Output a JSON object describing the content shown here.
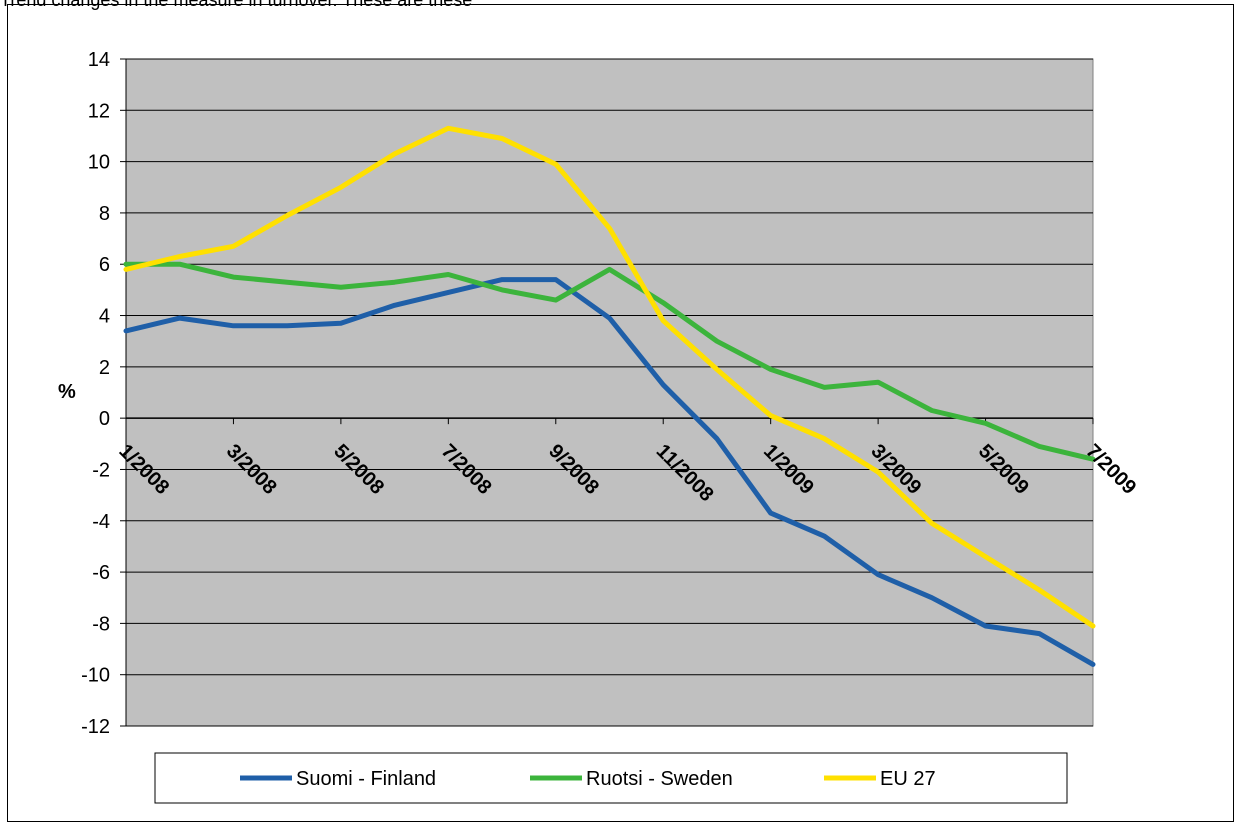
{
  "header": {
    "cut_text": "Trend changes in the measure in turnover. These are these"
  },
  "chart_data": {
    "type": "line",
    "title": "",
    "xlabel": "",
    "ylabel": "%",
    "ylim": [
      -12,
      14
    ],
    "yticks": [
      14,
      12,
      10,
      8,
      6,
      4,
      2,
      0,
      -2,
      -4,
      -6,
      -8,
      -10,
      -12
    ],
    "grid": true,
    "legend_position": "bottom",
    "x": [
      "1/2008",
      "2/2008",
      "3/2008",
      "4/2008",
      "5/2008",
      "6/2008",
      "7/2008",
      "8/2008",
      "9/2008",
      "10/2008",
      "11/2008",
      "12/2008",
      "1/2009",
      "2/2009",
      "3/2009",
      "4/2009",
      "5/2009",
      "6/2009",
      "7/2009"
    ],
    "xtick_labels": [
      "1/2008",
      "3/2008",
      "5/2008",
      "7/2008",
      "9/2008",
      "11/2008",
      "1/2009",
      "3/2009",
      "5/2009",
      "7/2009"
    ],
    "series": [
      {
        "name": "Suomi - Finland",
        "color": "#1f5fa8",
        "values": [
          3.4,
          3.9,
          3.6,
          3.6,
          3.7,
          4.4,
          4.9,
          5.4,
          5.4,
          3.9,
          1.3,
          -0.8,
          -3.7,
          -4.6,
          -6.1,
          -7.0,
          -8.1,
          -8.4,
          -9.6
        ]
      },
      {
        "name": "Ruotsi - Sweden",
        "color": "#3cb43c",
        "values": [
          6.0,
          6.0,
          5.5,
          5.3,
          5.1,
          5.3,
          5.6,
          5.0,
          4.6,
          5.8,
          4.5,
          3.0,
          1.9,
          1.2,
          1.4,
          0.3,
          -0.2,
          -1.1,
          -1.6
        ]
      },
      {
        "name": "EU 27",
        "color": "#ffe000",
        "values": [
          5.8,
          6.3,
          6.7,
          7.9,
          9.0,
          10.3,
          11.3,
          10.9,
          9.9,
          7.4,
          3.8,
          1.9,
          0.1,
          -0.8,
          -2.1,
          -4.1,
          -5.4,
          -6.7,
          -8.1
        ]
      }
    ]
  }
}
